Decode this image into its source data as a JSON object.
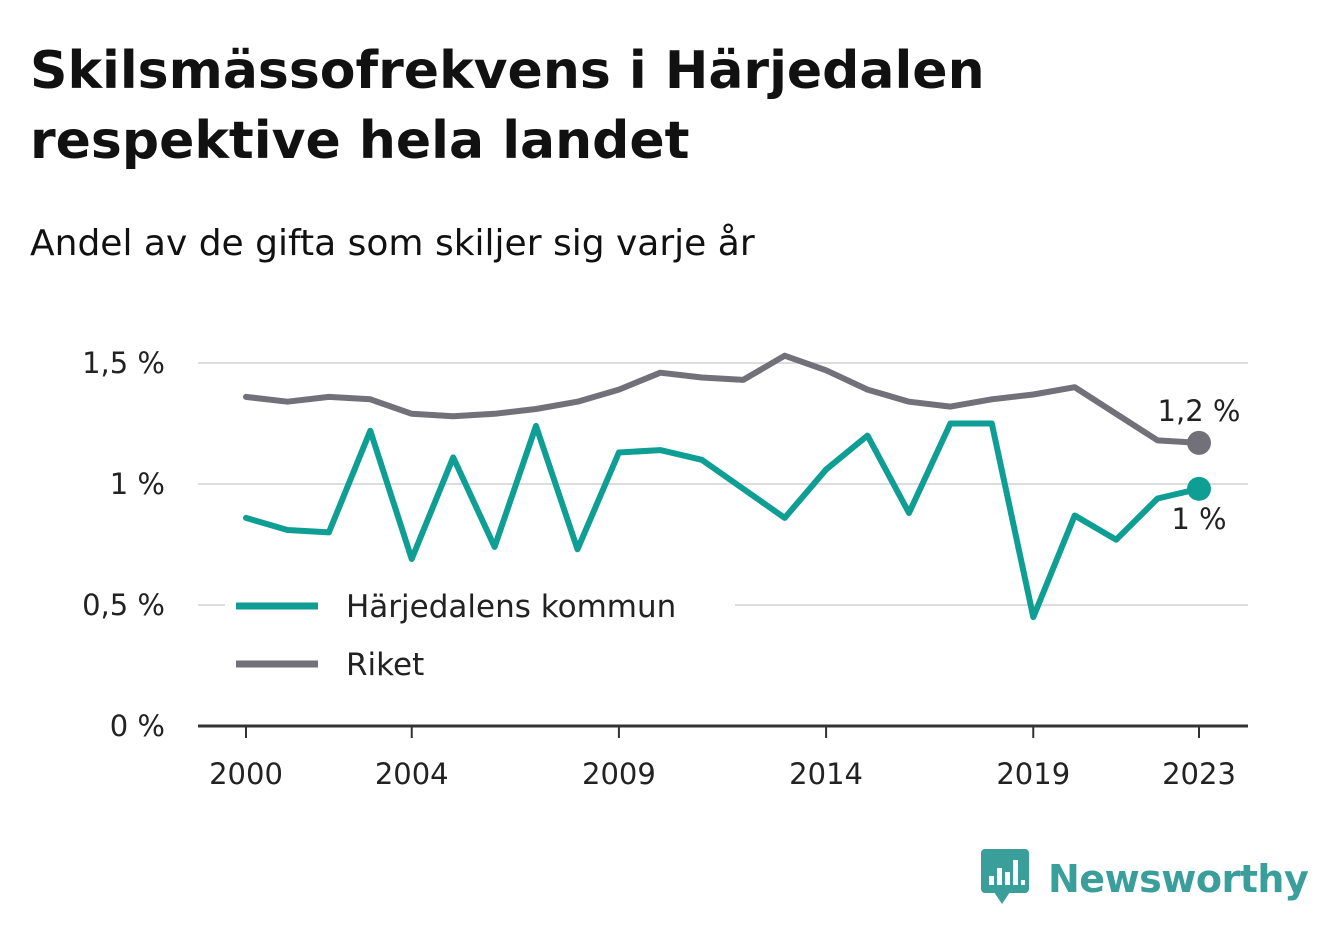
{
  "title": "Skilsmässofrekvens i Härjedalen respektive hela landet",
  "subtitle": "Andel av de gifta som skiljer sig varje år",
  "brand": "Newsworthy",
  "colors": {
    "harjedalen": "#0f9e93",
    "riket": "#72717a",
    "grid": "#dddddd",
    "axis": "#333333",
    "brand": "#3a9e9a"
  },
  "chart_data": {
    "type": "line",
    "x": [
      2000,
      2001,
      2002,
      2003,
      2004,
      2005,
      2006,
      2007,
      2008,
      2009,
      2010,
      2011,
      2012,
      2013,
      2014,
      2015,
      2016,
      2017,
      2018,
      2019,
      2020,
      2021,
      2022,
      2023
    ],
    "x_ticks": [
      2000,
      2004,
      2009,
      2014,
      2019,
      2023
    ],
    "x_tick_labels": [
      "2000",
      "2004",
      "2009",
      "2014",
      "2019",
      "2023"
    ],
    "ylim": [
      0,
      1.5
    ],
    "y_ticks": [
      0,
      0.5,
      1,
      1.5
    ],
    "y_tick_labels": [
      "0 %",
      "0,5 %",
      "1 %",
      "1,5 %"
    ],
    "grid": true,
    "legend_position": "bottom-left",
    "series": [
      {
        "name": "Härjedalens kommun",
        "key": "harjedalen",
        "values": [
          0.86,
          0.81,
          0.8,
          1.22,
          0.69,
          1.11,
          0.74,
          1.24,
          0.73,
          1.13,
          1.14,
          1.1,
          0.98,
          0.86,
          1.06,
          1.2,
          0.88,
          1.25,
          1.25,
          0.45,
          0.87,
          0.77,
          0.94,
          0.98
        ],
        "end_label": "1 %"
      },
      {
        "name": "Riket",
        "key": "riket",
        "values": [
          1.36,
          1.34,
          1.36,
          1.35,
          1.29,
          1.28,
          1.29,
          1.31,
          1.34,
          1.39,
          1.46,
          1.44,
          1.43,
          1.53,
          1.47,
          1.39,
          1.34,
          1.32,
          1.35,
          1.37,
          1.4,
          1.29,
          1.18,
          1.17
        ],
        "end_label": "1,2 %"
      }
    ]
  }
}
